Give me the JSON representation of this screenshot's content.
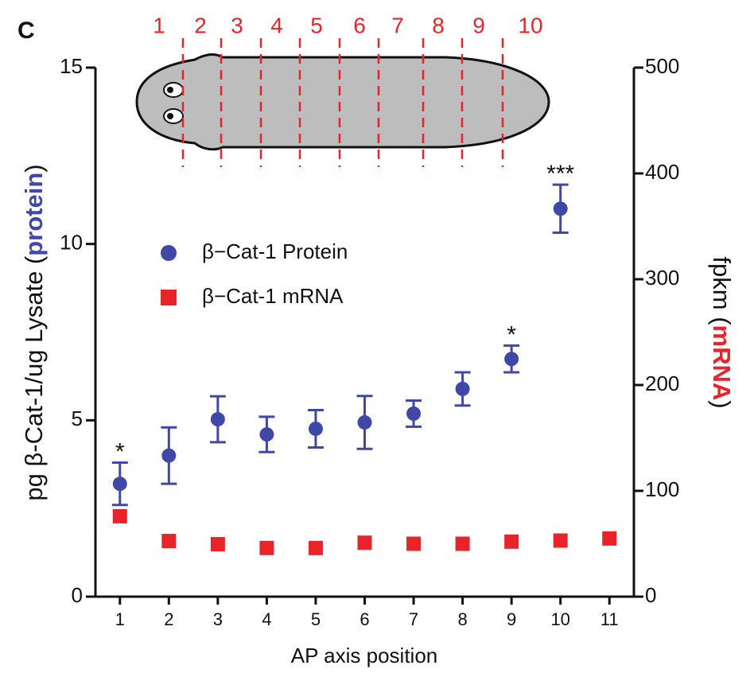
{
  "chart_data": {
    "type": "scatter",
    "panel_label": "C",
    "xlabel": "AP axis position",
    "ylabel": [
      {
        "text": "pg β-Cat-1/ug Lysate (",
        "color": "#111111"
      },
      {
        "text": "protein",
        "color": "#3f48a6"
      },
      {
        "text": ")",
        "color": "#111111"
      }
    ],
    "y2label": [
      {
        "text": "fpkm (",
        "color": "#111111"
      },
      {
        "text": "mRNA",
        "color": "#e8232a"
      },
      {
        "text": ")",
        "color": "#111111"
      }
    ],
    "x": [
      1,
      2,
      3,
      4,
      5,
      6,
      7,
      8,
      9,
      10,
      11
    ],
    "xlim": [
      0.5,
      11.5
    ],
    "xticks": [
      1,
      2,
      3,
      4,
      5,
      6,
      7,
      8,
      9,
      10,
      11
    ],
    "ylim": [
      0,
      15
    ],
    "yticks": [
      0,
      5,
      10,
      15
    ],
    "y2lim": [
      0,
      500
    ],
    "y2ticks": [
      0,
      100,
      200,
      300,
      400,
      500
    ],
    "series": [
      {
        "name": "β−Cat-1 Protein",
        "color": "#3f48a6",
        "marker": "circle",
        "axis": "y",
        "values": [
          3.2,
          4.0,
          5.03,
          4.6,
          4.76,
          4.94,
          5.19,
          5.89,
          6.74,
          11.0,
          null
        ],
        "errors": [
          0.6,
          0.8,
          0.65,
          0.5,
          0.53,
          0.75,
          0.37,
          0.47,
          0.38,
          0.68,
          null
        ]
      },
      {
        "name": "β−Cat-1 mRNA",
        "color": "#e8232a",
        "marker": "square",
        "axis": "y2",
        "values": [
          76,
          52.6,
          49.6,
          46,
          46,
          51,
          50,
          50,
          52,
          53,
          55
        ]
      }
    ],
    "annotations": [
      {
        "text": "*",
        "x": 1
      },
      {
        "text": "*",
        "x": 9
      },
      {
        "text": "***",
        "x": 10
      }
    ],
    "segment_labels": [
      "1",
      "2",
      "3",
      "4",
      "5",
      "6",
      "7",
      "8",
      "9",
      "10"
    ],
    "segment_color": "#e8232a"
  }
}
